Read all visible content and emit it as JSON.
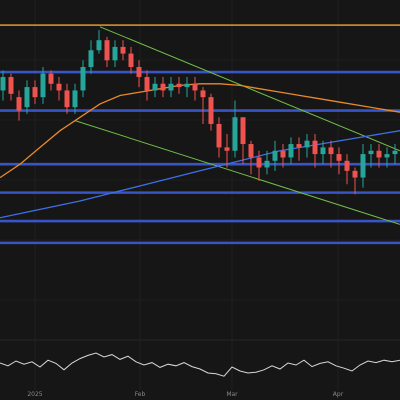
{
  "chart_data": [
    {
      "type": "candlestick",
      "panel": "price",
      "x_ticks": [
        "2025",
        "Feb",
        "Mar",
        "Apr"
      ],
      "ylim": [
        0,
        100
      ],
      "grid": true,
      "colors": {
        "background": "#161616",
        "up": "#26a69a",
        "down": "#ef5350",
        "resistance": "#d48a2a",
        "support": "#3d5bd9",
        "ema_orange": "#e8892b",
        "ema_blue": "#3f6fe8",
        "channel": "#6fbf47"
      },
      "horizontal_levels": [
        {
          "name": "resistance",
          "y": 92.5,
          "color": "#d48a2a"
        },
        {
          "name": "level-1",
          "y": 78.5,
          "color": "#3d5bd9"
        },
        {
          "name": "level-2",
          "y": 67,
          "color": "#3d5bd9"
        },
        {
          "name": "level-3",
          "y": 51,
          "color": "#3d5bd9"
        },
        {
          "name": "level-4",
          "y": 42.5,
          "color": "#3d5bd9"
        },
        {
          "name": "level-5",
          "y": 34,
          "color": "#3d5bd9"
        },
        {
          "name": "level-6",
          "y": 27.5,
          "color": "#3d5bd9"
        }
      ],
      "moving_averages": [
        {
          "name": "ema-orange",
          "color": "#e8892b",
          "x": [
            0,
            20,
            40,
            60,
            80,
            100,
            120,
            140,
            160,
            180,
            200,
            220,
            240,
            260,
            280,
            300,
            320,
            340,
            360,
            380,
            400
          ],
          "y": [
            47,
            51,
            56,
            61,
            65,
            69,
            71.5,
            72.5,
            73.5,
            74.5,
            75,
            75,
            74.5,
            73.5,
            72.5,
            71.5,
            70.5,
            69.5,
            68.5,
            67.5,
            66.5
          ]
        },
        {
          "name": "ema-blue",
          "color": "#3f6fe8",
          "x": [
            0,
            40,
            80,
            120,
            160,
            200,
            240,
            280,
            320,
            360,
            400
          ],
          "y": [
            35,
            37.5,
            40,
            43,
            46,
            49,
            52,
            55,
            57,
            59,
            61
          ]
        }
      ],
      "trend_channel": {
        "color": "#6fbf47",
        "upper": {
          "x": [
            100,
            400
          ],
          "y": [
            92,
            55
          ]
        },
        "lower": {
          "x": [
            75,
            400
          ],
          "y": [
            64,
            33
          ]
        }
      },
      "candles": {
        "x": [
          3,
          11,
          19,
          27,
          35,
          43,
          51,
          59,
          67,
          75,
          83,
          91,
          99,
          107,
          115,
          123,
          131,
          139,
          147,
          155,
          163,
          171,
          179,
          187,
          195,
          203,
          211,
          219,
          227,
          235,
          243,
          251,
          259,
          267,
          275,
          283,
          291,
          299,
          307,
          315,
          323,
          331,
          339,
          347,
          355,
          363,
          371,
          379,
          387,
          395
        ],
        "open": [
          73,
          77,
          71,
          68,
          74,
          71,
          78,
          75,
          73,
          68,
          73,
          80,
          85,
          88,
          82,
          86,
          84,
          80,
          77,
          73,
          75,
          73,
          75,
          74,
          75,
          73,
          71,
          63,
          56,
          55,
          65,
          57,
          53,
          50,
          52,
          55,
          53,
          57,
          56,
          58,
          54,
          56,
          54,
          52,
          49,
          47,
          54,
          55,
          53,
          54
        ],
        "close": [
          77,
          72,
          67,
          74,
          71,
          78,
          75,
          73,
          68,
          73,
          80,
          85,
          88,
          82,
          86,
          84,
          80,
          77,
          73,
          75,
          73,
          75,
          74,
          75,
          73,
          71,
          63,
          56,
          55,
          65,
          57,
          53,
          50,
          52,
          55,
          53,
          57,
          56,
          58,
          54,
          56,
          54,
          52,
          49,
          47,
          54,
          55,
          53,
          54,
          55
        ],
        "high": [
          79,
          78,
          73,
          76,
          76,
          80,
          79,
          77,
          75,
          75,
          82,
          88,
          91,
          89,
          88,
          88,
          86,
          82,
          79,
          77,
          77,
          77,
          77,
          77,
          77,
          74,
          72,
          65,
          60,
          70,
          60,
          58,
          55,
          55,
          58,
          57,
          59,
          59,
          60,
          60,
          58,
          58,
          56,
          54,
          50,
          57,
          57,
          57,
          56,
          57
        ],
        "low": [
          70,
          70,
          64,
          66,
          69,
          69,
          73,
          70,
          66,
          66,
          71,
          78,
          84,
          80,
          80,
          82,
          78,
          74,
          70,
          71,
          71,
          71,
          72,
          71,
          70,
          63,
          61,
          53,
          50,
          53,
          51,
          48,
          46,
          48,
          49,
          50,
          51,
          52,
          53,
          50,
          51,
          50,
          48,
          45,
          42,
          44,
          50,
          50,
          50,
          51
        ]
      }
    },
    {
      "type": "line",
      "panel": "oscillator",
      "ylim": [
        0,
        100
      ],
      "series": [
        {
          "color": "#d8d8d8",
          "x": [
            0,
            8,
            16,
            24,
            32,
            40,
            48,
            56,
            64,
            72,
            80,
            88,
            96,
            104,
            112,
            120,
            128,
            136,
            144,
            152,
            160,
            168,
            176,
            184,
            192,
            200,
            208,
            216,
            224,
            232,
            240,
            248,
            256,
            264,
            272,
            280,
            288,
            296,
            304,
            312,
            320,
            328,
            336,
            344,
            352,
            360,
            368,
            376,
            384,
            392,
            400
          ],
          "y": [
            55,
            48,
            60,
            52,
            58,
            45,
            62,
            54,
            38,
            55,
            66,
            74,
            80,
            70,
            76,
            64,
            72,
            58,
            50,
            56,
            44,
            52,
            48,
            56,
            46,
            40,
            30,
            28,
            22,
            45,
            35,
            30,
            32,
            38,
            48,
            40,
            55,
            50,
            62,
            46,
            54,
            58,
            48,
            42,
            35,
            50,
            60,
            56,
            62,
            58,
            62
          ]
        }
      ]
    }
  ]
}
